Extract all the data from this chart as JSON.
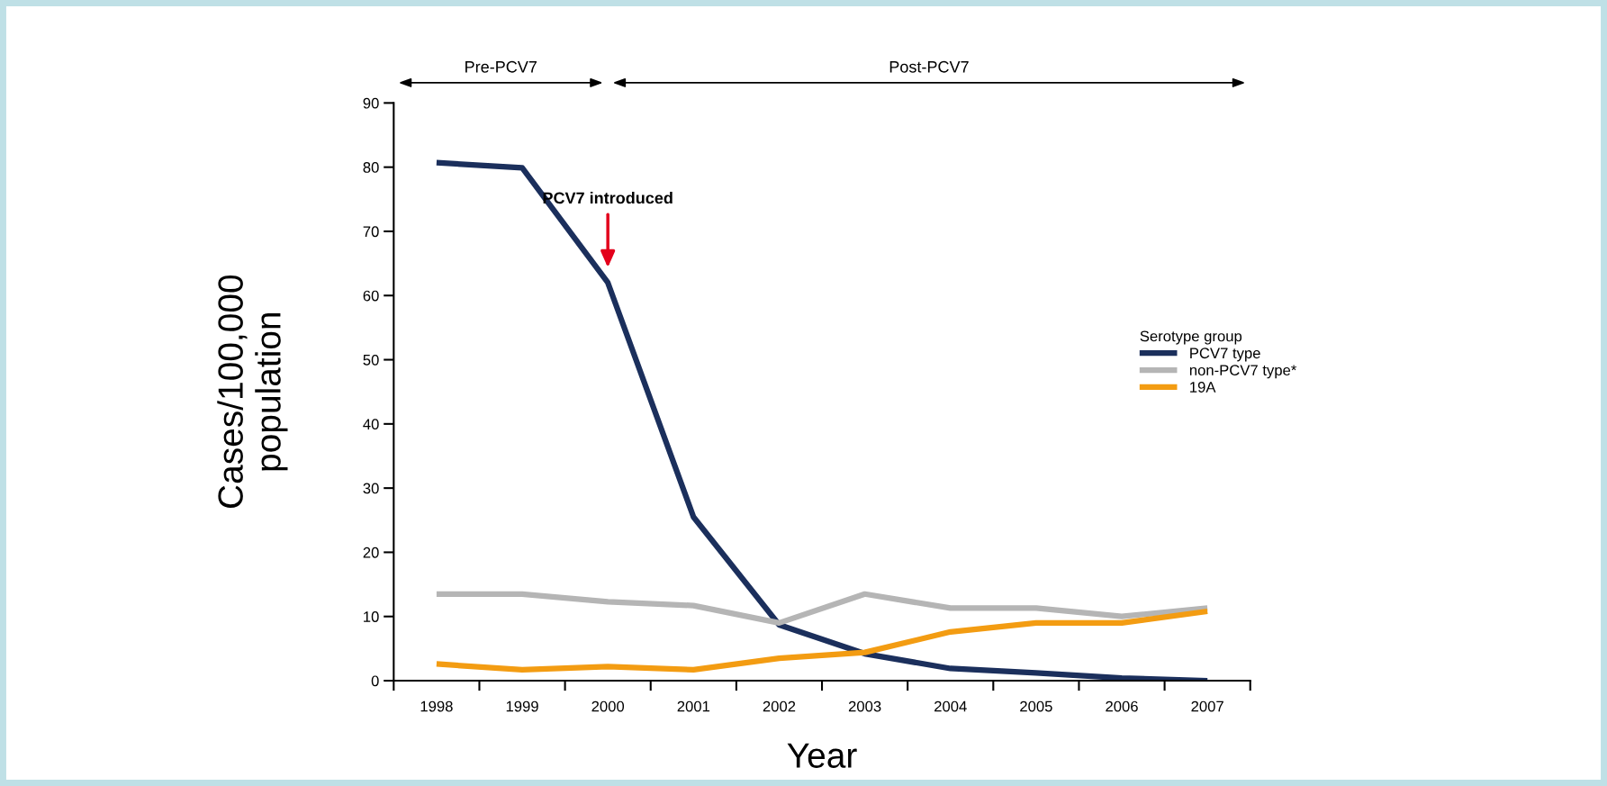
{
  "chart_data": {
    "type": "line",
    "categories": [
      "1998",
      "1999",
      "2000",
      "2001",
      "2002",
      "2003",
      "2004",
      "2005",
      "2006",
      "2007"
    ],
    "series": [
      {
        "name": "PCV7 type",
        "color": "#1b2f5c",
        "values": [
          80.7,
          79.9,
          62,
          25.5,
          8.7,
          4.2,
          1.9,
          1.2,
          0.4,
          0
        ]
      },
      {
        "name": "non-PCV7 type*",
        "color": "#b5b5b5",
        "values": [
          13.5,
          13.5,
          12.3,
          11.7,
          9,
          13.5,
          11.3,
          11.3,
          10,
          11.3
        ]
      },
      {
        "name": "19A",
        "color": "#f39c12",
        "values": [
          2.6,
          1.7,
          2.2,
          1.7,
          3.5,
          4.4,
          7.6,
          9,
          9,
          10.8
        ]
      }
    ],
    "xlabel": "Year",
    "ylabel": "Cases/100,000\npopulation",
    "legend_title": "Serotype group",
    "ylim": [
      0,
      90
    ],
    "yticks": [
      0,
      10,
      20,
      30,
      40,
      50,
      60,
      70,
      80,
      90
    ],
    "annotations": [
      "Pre-PCV7",
      "Post-PCV7",
      "PCV7 introduced"
    ],
    "grid": false,
    "legend": "right",
    "marker": "none",
    "line_style": "solid"
  }
}
